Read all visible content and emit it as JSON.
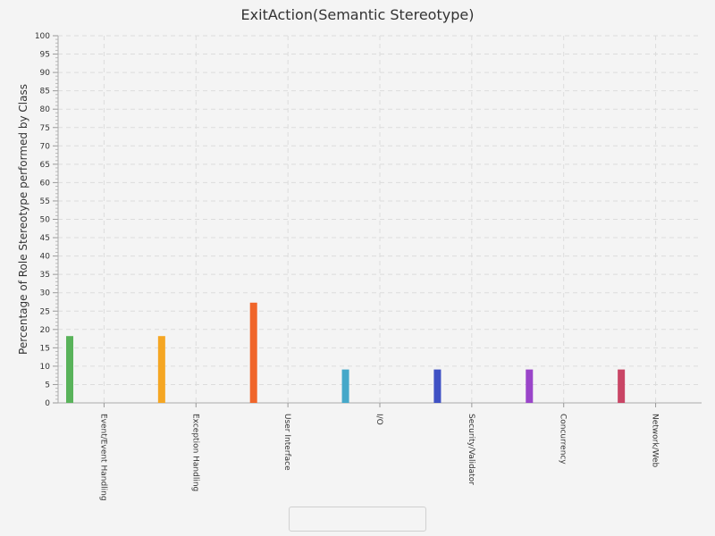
{
  "chart_data": {
    "type": "bar",
    "title": "ExitAction(Semantic Stereotype)",
    "ylabel": "Percentage of Role Stereotype performed by Class",
    "xlabel": "",
    "ylim": [
      0,
      100
    ],
    "ytick_step": 5,
    "grid": true,
    "legend_placement": "bottom-center",
    "categories": [
      "Event/Event Handling",
      "Exception Handling",
      "User Interface",
      "I/O",
      "Security/Validator",
      "Concurrency",
      "Network/Web"
    ],
    "values": [
      18.2,
      18.2,
      27.3,
      9.1,
      9.1,
      9.1,
      9.1
    ],
    "colors": [
      "#59b35a",
      "#f5a623",
      "#f0652a",
      "#45a8c9",
      "#3f51c4",
      "#9a45c9",
      "#c94565"
    ],
    "legend_colors": [
      "#f0652a",
      "#f5a623",
      "#59b35a",
      "#45a8c9",
      "#3f51c4",
      "#9a45c9",
      "#c94565"
    ]
  }
}
